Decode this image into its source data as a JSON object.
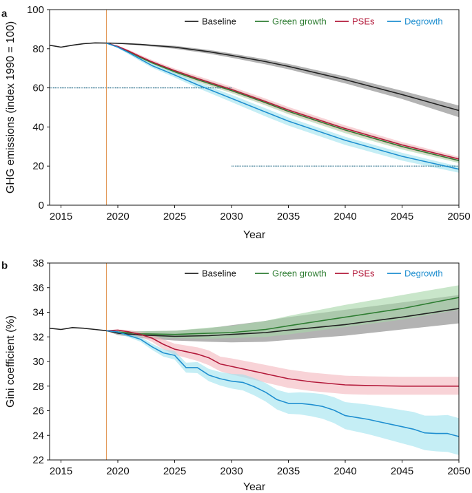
{
  "colors": {
    "Baseline": "#222222",
    "Green growth": "#2e7d32",
    "PSEs": "#b3193a",
    "Degrowth": "#1f8fd0",
    "band_Baseline": "#9a9a9a",
    "band_Green growth": "#a5d6a7",
    "band_PSEs": "#f4b6bd",
    "band_Degrowth": "#9fe3ef",
    "vline": "#e39a5a",
    "hline": "#2a6f8a"
  },
  "chart_data": [
    {
      "type": "line",
      "panel": "a",
      "xlabel": "Year",
      "ylabel": "GHG emissions (index 1990 = 100)",
      "xlim": [
        2014,
        2050
      ],
      "ylim": [
        0,
        100
      ],
      "xticks": [
        2015,
        2020,
        2025,
        2030,
        2035,
        2040,
        2045,
        2050
      ],
      "yticks": [
        0,
        20,
        40,
        60,
        80,
        100
      ],
      "legend": [
        "Baseline",
        "Green growth",
        "PSEs",
        "Degrowth"
      ],
      "legend_position": "top-right",
      "grid": false,
      "vline_x": 2019,
      "hlines": [
        {
          "y": 60,
          "x_from": 2014,
          "x_to": 2030
        },
        {
          "y": 20,
          "x_from": 2030,
          "x_to": 2050
        }
      ],
      "series": [
        {
          "name": "Baseline",
          "x": [
            2014,
            2015,
            2016,
            2017,
            2018,
            2019,
            2020,
            2022,
            2025,
            2028,
            2030,
            2033,
            2035,
            2040,
            2045,
            2050
          ],
          "values": [
            81.8,
            80.8,
            81.8,
            82.6,
            83.0,
            82.9,
            82.8,
            82.2,
            80.8,
            78.5,
            76.6,
            73.4,
            71.0,
            64.2,
            56.6,
            48.4
          ],
          "lower": [
            81.8,
            80.8,
            81.8,
            82.6,
            83.0,
            82.9,
            82.5,
            81.7,
            80.0,
            77.5,
            75.4,
            72.0,
            69.5,
            62.3,
            54.3,
            45.0
          ],
          "upper": [
            81.8,
            80.8,
            81.8,
            82.6,
            83.0,
            82.9,
            82.9,
            82.5,
            81.5,
            79.4,
            77.6,
            74.6,
            72.3,
            65.8,
            58.5,
            51.0
          ]
        },
        {
          "name": "Green growth",
          "x": [
            2019,
            2020,
            2021,
            2022,
            2023,
            2025,
            2027,
            2030,
            2033,
            2035,
            2040,
            2045,
            2050
          ],
          "values": [
            82.9,
            81.0,
            78.4,
            75.5,
            72.8,
            68.2,
            64.2,
            58.6,
            52.4,
            48.0,
            38.4,
            30.0,
            22.8
          ],
          "lower": [
            82.9,
            80.6,
            77.8,
            74.8,
            72.0,
            67.2,
            63.0,
            57.3,
            51.0,
            46.5,
            36.8,
            28.5,
            21.6
          ],
          "upper": [
            82.9,
            81.3,
            78.9,
            76.1,
            73.5,
            69.2,
            65.4,
            59.9,
            53.7,
            49.4,
            39.8,
            31.4,
            24.0
          ]
        },
        {
          "name": "PSEs",
          "x": [
            2019,
            2020,
            2021,
            2022,
            2023,
            2025,
            2027,
            2030,
            2033,
            2035,
            2040,
            2045,
            2050
          ],
          "values": [
            82.9,
            81.2,
            78.7,
            75.9,
            73.3,
            68.8,
            64.8,
            59.2,
            53.0,
            48.7,
            39.2,
            30.8,
            23.6
          ],
          "lower": [
            82.9,
            80.8,
            78.0,
            75.0,
            72.4,
            67.7,
            63.5,
            57.8,
            51.5,
            47.1,
            37.5,
            29.2,
            22.3
          ],
          "upper": [
            82.9,
            81.6,
            79.4,
            76.8,
            74.3,
            69.9,
            66.1,
            60.6,
            54.5,
            50.2,
            40.8,
            32.3,
            24.8
          ]
        },
        {
          "name": "Degrowth",
          "x": [
            2019,
            2020,
            2021,
            2022,
            2023,
            2025,
            2027,
            2030,
            2033,
            2035,
            2040,
            2045,
            2050
          ],
          "values": [
            82.9,
            80.8,
            77.9,
            74.6,
            71.4,
            66.6,
            61.6,
            54.6,
            47.6,
            43.0,
            33.2,
            25.0,
            18.4
          ],
          "lower": [
            82.9,
            80.3,
            77.0,
            73.6,
            70.3,
            65.3,
            60.0,
            52.7,
            45.4,
            40.7,
            30.8,
            22.8,
            16.6
          ],
          "upper": [
            82.9,
            81.1,
            78.5,
            75.4,
            72.4,
            67.8,
            63.0,
            56.4,
            49.5,
            44.9,
            35.0,
            26.8,
            19.8
          ]
        }
      ]
    },
    {
      "type": "line",
      "panel": "b",
      "xlabel": "Year",
      "ylabel": "Gini coefficient (%)",
      "xlim": [
        2014,
        2050
      ],
      "ylim": [
        22,
        38
      ],
      "xticks": [
        2015,
        2020,
        2025,
        2030,
        2035,
        2040,
        2045,
        2050
      ],
      "yticks": [
        22,
        24,
        26,
        28,
        30,
        32,
        34,
        36,
        38
      ],
      "legend": [
        "Baseline",
        "Green growth",
        "PSEs",
        "Degrowth"
      ],
      "legend_position": "top-right",
      "grid": false,
      "vline_x": 2019,
      "series": [
        {
          "name": "Baseline",
          "x": [
            2014,
            2015,
            2016,
            2017,
            2018,
            2019,
            2020,
            2022,
            2025,
            2028,
            2030,
            2033,
            2035,
            2040,
            2045,
            2050
          ],
          "values": [
            32.7,
            32.6,
            32.75,
            32.7,
            32.6,
            32.5,
            32.3,
            32.15,
            32.05,
            32.1,
            32.2,
            32.35,
            32.55,
            33.0,
            33.6,
            34.3
          ],
          "lower": [
            32.7,
            32.6,
            32.75,
            32.7,
            32.6,
            32.5,
            32.15,
            31.9,
            31.7,
            31.6,
            31.55,
            31.6,
            31.75,
            32.1,
            32.6,
            33.1
          ],
          "upper": [
            32.7,
            32.6,
            32.75,
            32.7,
            32.6,
            32.5,
            32.45,
            32.45,
            32.5,
            32.7,
            32.95,
            33.3,
            33.6,
            34.2,
            34.8,
            35.4
          ]
        },
        {
          "name": "Green growth",
          "x": [
            2019,
            2020,
            2022,
            2025,
            2028,
            2030,
            2033,
            2035,
            2040,
            2045,
            2050
          ],
          "values": [
            32.5,
            32.4,
            32.25,
            32.2,
            32.3,
            32.35,
            32.6,
            32.9,
            33.6,
            34.3,
            35.2
          ],
          "lower": [
            32.5,
            32.3,
            32.05,
            31.9,
            31.85,
            31.9,
            32.0,
            32.2,
            32.8,
            33.4,
            34.2
          ],
          "upper": [
            32.5,
            32.5,
            32.45,
            32.5,
            32.75,
            32.9,
            33.3,
            33.7,
            34.6,
            35.4,
            36.2
          ]
        },
        {
          "name": "PSEs",
          "x": [
            2019,
            2020,
            2021,
            2022,
            2023,
            2024,
            2025,
            2026,
            2027,
            2028,
            2029,
            2030,
            2032,
            2035,
            2037,
            2040,
            2042,
            2045,
            2050
          ],
          "values": [
            32.5,
            32.55,
            32.4,
            32.2,
            31.9,
            31.4,
            31.0,
            30.8,
            30.6,
            30.3,
            29.8,
            29.6,
            29.2,
            28.6,
            28.35,
            28.1,
            28.05,
            28.0,
            28.0
          ],
          "lower": [
            32.5,
            32.5,
            32.25,
            32.0,
            31.6,
            31.0,
            30.55,
            30.3,
            30.05,
            29.7,
            29.2,
            28.95,
            28.5,
            27.85,
            27.6,
            27.35,
            27.3,
            27.3,
            27.3
          ],
          "upper": [
            32.5,
            32.6,
            32.55,
            32.4,
            32.2,
            31.8,
            31.45,
            31.3,
            31.15,
            30.9,
            30.4,
            30.25,
            29.9,
            29.35,
            29.1,
            28.85,
            28.8,
            28.75,
            28.75
          ]
        },
        {
          "name": "Degrowth",
          "x": [
            2019,
            2020,
            2021,
            2022,
            2023,
            2024,
            2025,
            2026,
            2027,
            2028,
            2029,
            2030,
            2031,
            2032,
            2033,
            2034,
            2035,
            2036,
            2037,
            2038,
            2039,
            2040,
            2041,
            2042,
            2043,
            2044,
            2045,
            2046,
            2047,
            2048,
            2049,
            2050
          ],
          "values": [
            32.5,
            32.4,
            32.1,
            31.8,
            31.2,
            30.7,
            30.5,
            29.5,
            29.5,
            28.9,
            28.6,
            28.4,
            28.3,
            27.95,
            27.5,
            26.9,
            26.6,
            26.6,
            26.5,
            26.35,
            26.05,
            25.6,
            25.45,
            25.3,
            25.1,
            24.9,
            24.7,
            24.5,
            24.2,
            24.15,
            24.15,
            23.9
          ],
          "lower": [
            32.5,
            32.3,
            31.95,
            31.6,
            30.95,
            30.4,
            30.15,
            29.1,
            29.05,
            28.4,
            28.05,
            27.8,
            27.65,
            27.25,
            26.75,
            26.1,
            25.75,
            25.7,
            25.55,
            25.35,
            25.0,
            24.5,
            24.3,
            24.1,
            23.85,
            23.6,
            23.35,
            23.1,
            22.8,
            22.7,
            22.65,
            22.4
          ],
          "upper": [
            32.5,
            32.5,
            32.25,
            32.0,
            31.45,
            31.0,
            30.85,
            29.9,
            29.95,
            29.4,
            29.15,
            29.0,
            28.95,
            28.65,
            28.25,
            27.7,
            27.45,
            27.5,
            27.45,
            27.35,
            27.1,
            26.7,
            26.6,
            26.5,
            26.35,
            26.2,
            26.05,
            25.9,
            25.6,
            25.6,
            25.65,
            25.4
          ]
        }
      ]
    }
  ]
}
